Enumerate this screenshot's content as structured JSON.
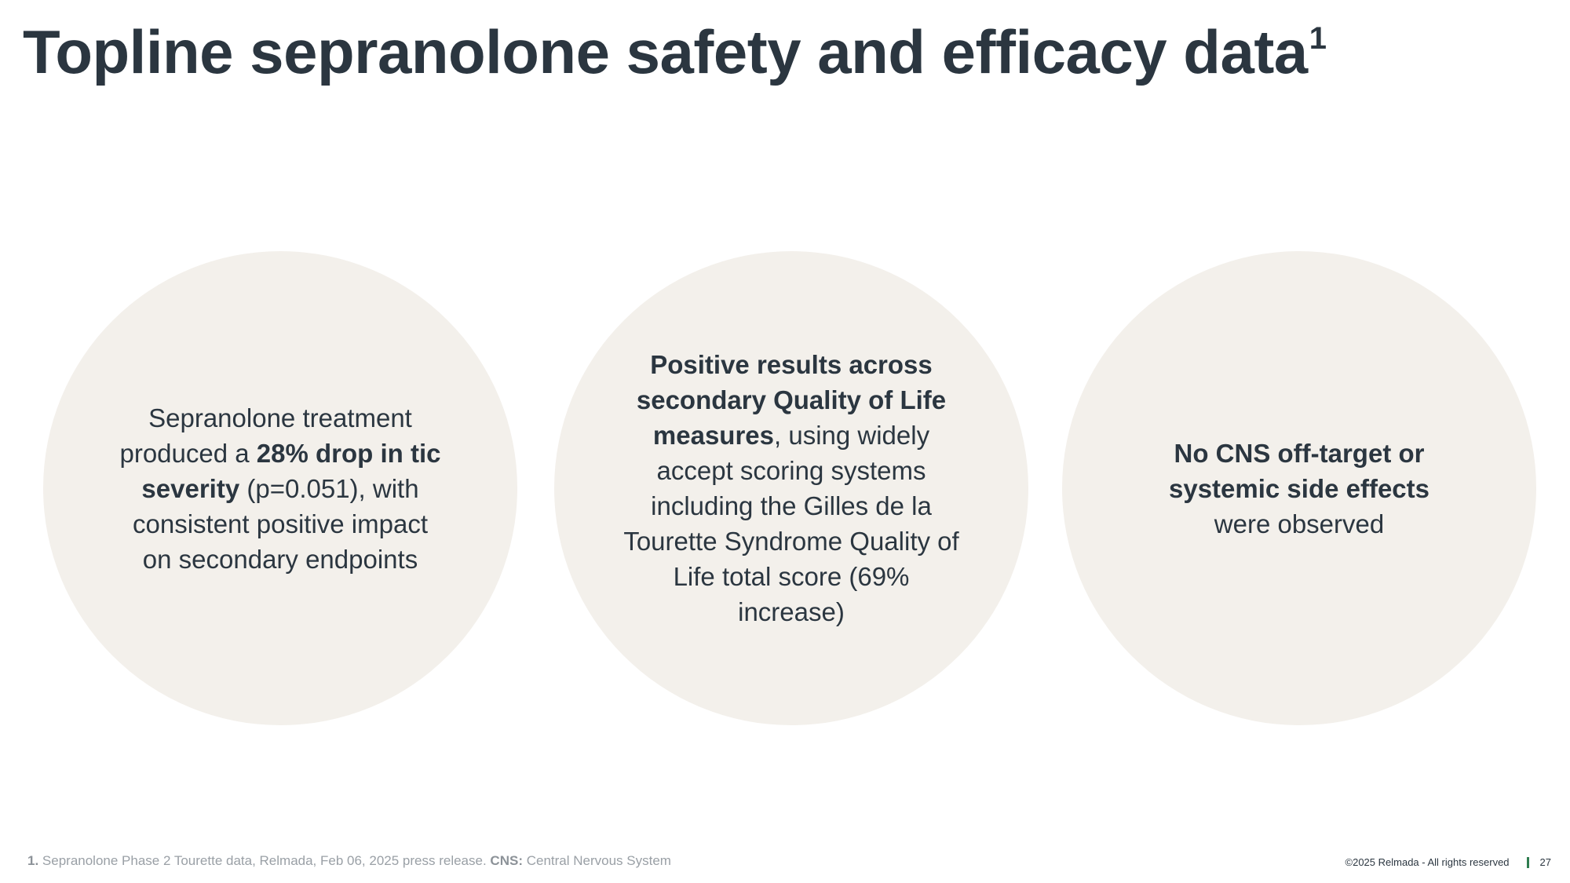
{
  "slide": {
    "title": "Topline sepranolone safety and efficacy data",
    "title_superscript": "1"
  },
  "circles": [
    {
      "segments": [
        {
          "text": "Sepranolone treatment produced a ",
          "bold": false
        },
        {
          "text": "28% drop in tic severity",
          "bold": true
        },
        {
          "text": " (p=0.051), with consistent positive impact on secondary endpoints",
          "bold": false
        }
      ]
    },
    {
      "segments": [
        {
          "text": "Positive results across secondary Quality of Life measures",
          "bold": true
        },
        {
          "text": ", using widely accept scoring systems including the Gilles de la Tourette Syndrome Quality of Life total score (69% increase)",
          "bold": false
        }
      ]
    },
    {
      "segments": [
        {
          "text": "No CNS off-target or systemic side effects",
          "bold": true
        },
        {
          "text": " were observed",
          "bold": false
        }
      ]
    }
  ],
  "footnote": {
    "marker": "1.",
    "text": " Sepranolone Phase 2 Tourette data, Relmada, Feb 06, 2025 press release. ",
    "abbr_term": "CNS:",
    "abbr_definition": " Central Nervous System"
  },
  "footer": {
    "copyright": "©2025 Relmada - All rights reserved",
    "page_number": "27"
  },
  "colors": {
    "title": "#2b3640",
    "circle_fill": "#f3f0eb",
    "footnote": "#9aa0a6",
    "separator_accent": "#2e7d4f"
  }
}
